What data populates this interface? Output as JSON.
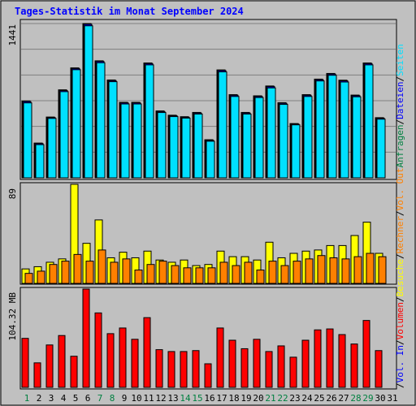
{
  "title": "Tages-Statistik im Monat September 2024",
  "days": [
    "1",
    "2",
    "3",
    "4",
    "5",
    "6",
    "7",
    "8",
    "9",
    "10",
    "11",
    "12",
    "13",
    "14",
    "15",
    "16",
    "17",
    "18",
    "19",
    "20",
    "21",
    "22",
    "23",
    "24",
    "25",
    "26",
    "27",
    "28",
    "29",
    "30",
    "31"
  ],
  "weekend_days": [
    "1",
    "7",
    "8",
    "14",
    "15",
    "21",
    "22",
    "28",
    "29"
  ],
  "colors": {
    "background": "#c0c0c0",
    "title": "#0000ff",
    "weekday_label": "#000000",
    "weekend_label": "#008040",
    "anfragen": "#008040",
    "dateien": "#0000ff",
    "seiten": "#00e0ff",
    "besuche": "#ffff00",
    "rechner": "#ff8000",
    "volumen": "#ff0000",
    "vol_in": "#0000ff",
    "vol_out": "#ff8000",
    "separator": "#000000"
  },
  "right_labels": {
    "top": [
      {
        "text": "Anfragen",
        "color": "#008040"
      },
      {
        "text": "/",
        "color": "#000000"
      },
      {
        "text": "Dateien",
        "color": "#0000ff"
      },
      {
        "text": "/",
        "color": "#000000"
      },
      {
        "text": "Seiten",
        "color": "#00e0ff"
      }
    ],
    "middle": [
      {
        "text": "/",
        "color": "#000000"
      },
      {
        "text": "Besuche",
        "color": "#ffff00"
      },
      {
        "text": "/",
        "color": "#000000"
      },
      {
        "text": "Rechner",
        "color": "#ff8000"
      },
      {
        "text": "/",
        "color": "#000000"
      },
      {
        "text": "Vol. Out",
        "color": "#ff8000"
      }
    ],
    "bottom": [
      {
        "text": "/",
        "color": "#000000"
      },
      {
        "text": "Vol. In",
        "color": "#0000ff"
      },
      {
        "text": "/",
        "color": "#000000"
      },
      {
        "text": "Volumen",
        "color": "#ff0000"
      }
    ]
  },
  "chart_data": [
    {
      "type": "bar",
      "panel": "anfragen",
      "ymax_label": "1441",
      "ymax": 1441,
      "gridlines": 6,
      "series": [
        {
          "name": "Anfragen",
          "color": "#008040",
          "values": [
            718,
            325,
            568,
            822,
            1027,
            1441,
            1093,
            914,
            705,
            705,
            1073,
            625,
            585,
            571,
            611,
            356,
            1008,
            777,
            611,
            766,
            858,
            702,
            507,
            777,
            922,
            975,
            912,
            773,
            1073,
            562,
            0
          ]
        },
        {
          "name": "Dateien",
          "color": "#0000ff",
          "values": [
            712,
            320,
            563,
            815,
            1021,
            1434,
            1087,
            908,
            700,
            700,
            1067,
            619,
            580,
            566,
            605,
            350,
            1002,
            771,
            605,
            760,
            852,
            696,
            502,
            771,
            916,
            969,
            906,
            767,
            1067,
            557,
            0
          ]
        },
        {
          "name": "Seiten",
          "color": "#00e0ff",
          "values": [
            700,
            310,
            555,
            805,
            1010,
            1420,
            1075,
            898,
            690,
            690,
            1055,
            610,
            572,
            558,
            596,
            342,
            990,
            760,
            596,
            750,
            840,
            686,
            495,
            760,
            905,
            958,
            895,
            757,
            1055,
            548,
            0
          ]
        }
      ]
    },
    {
      "type": "bar",
      "panel": "besuche",
      "ymax_label": "89",
      "ymax": 89,
      "series": [
        {
          "name": "Besuche",
          "color": "#ffff00",
          "values": [
            13,
            15,
            19,
            22,
            89,
            36,
            57,
            23,
            28,
            23,
            29,
            21,
            19,
            21,
            16,
            17,
            29,
            24,
            24,
            21,
            37,
            23,
            27,
            29,
            30,
            34,
            34,
            43,
            55,
            27,
            0
          ]
        },
        {
          "name": "Rechner",
          "color": "#ff8000",
          "values": [
            9,
            11,
            17,
            20,
            26,
            20,
            30,
            19,
            22,
            12,
            17,
            20,
            16,
            14,
            14,
            14,
            19,
            16,
            19,
            12,
            20,
            16,
            20,
            22,
            25,
            23,
            22,
            24,
            27,
            24,
            0
          ]
        }
      ]
    },
    {
      "type": "bar",
      "panel": "volumen",
      "ymax_label": "104.32 MB",
      "ymax": 104.32,
      "series": [
        {
          "name": "Volumen",
          "color": "#ff0000",
          "values": [
            52,
            26,
            45,
            55,
            33,
            104.32,
            79,
            57,
            63,
            51,
            74,
            40,
            38,
            38,
            39,
            25,
            63,
            50,
            41,
            51,
            38,
            44,
            32,
            50,
            61,
            62,
            56,
            46,
            71,
            39,
            0
          ]
        }
      ]
    }
  ]
}
